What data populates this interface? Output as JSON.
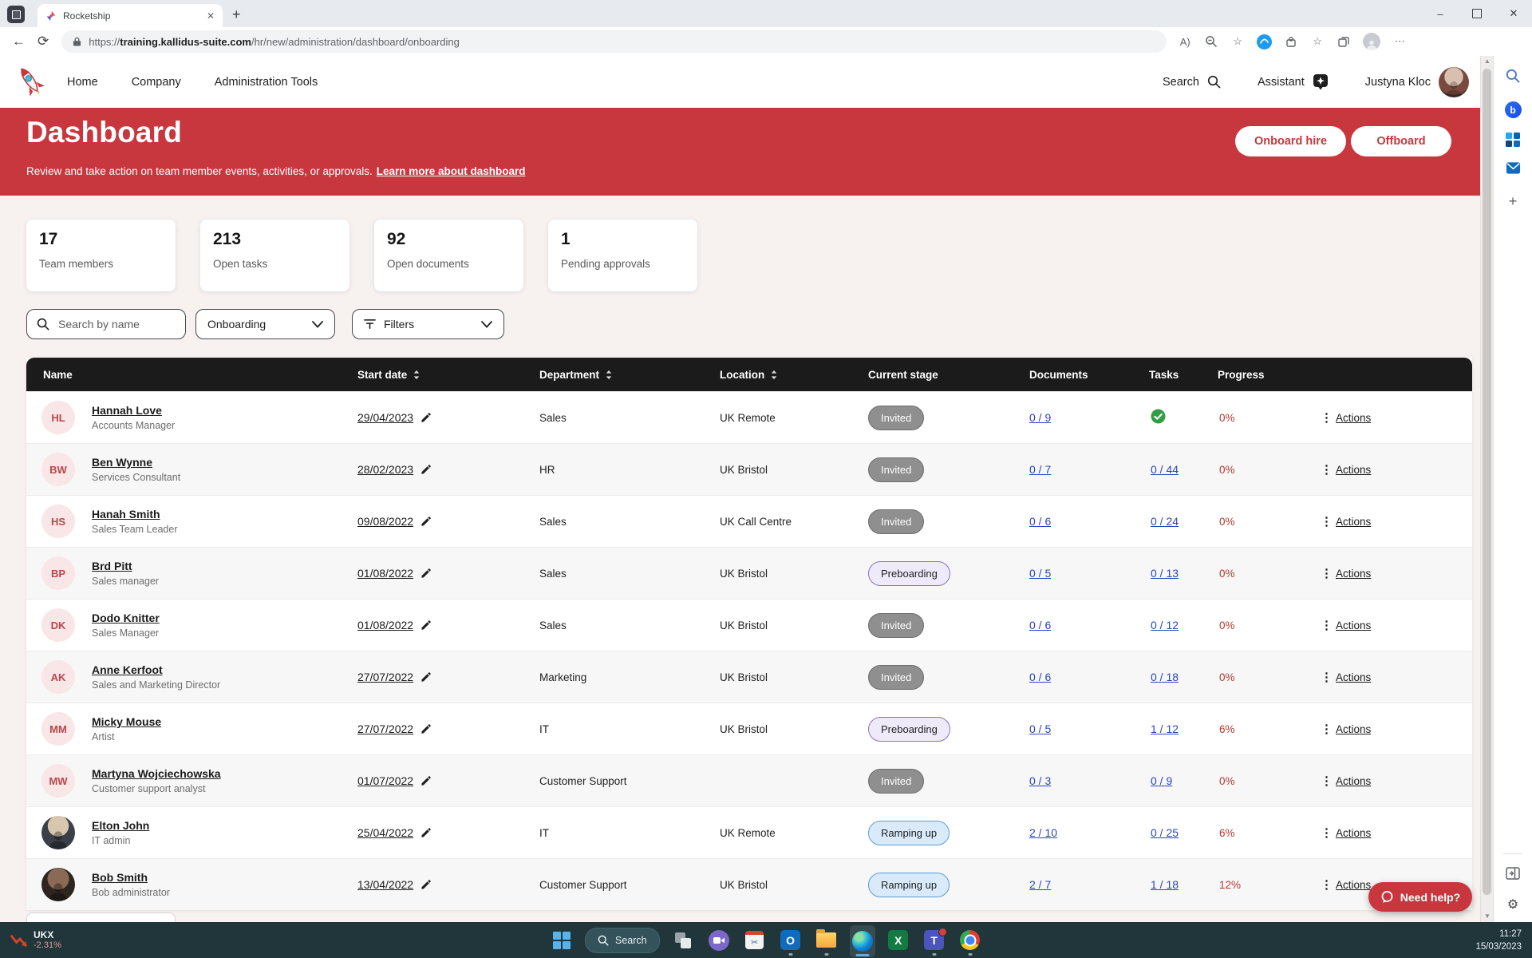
{
  "browser": {
    "tab_title": "Rocketship",
    "url_scheme": "https://",
    "url_host": "training.kallidus-suite.com",
    "url_path": "/hr/new/administration/dashboard/onboarding"
  },
  "icons": {
    "kebab": "⋮",
    "close": "✕",
    "minimize": "–",
    "back": "←",
    "refresh": "⟳",
    "new_tab": "+",
    "read_aloud": "A)",
    "star": "☆",
    "more": "⋯",
    "scroll_up": "▲",
    "scroll_down": "▼",
    "gear": "⚙",
    "scissors": "✂",
    "plus": "+",
    "bing_b": "b",
    "outlook_o": "O",
    "excel_x": "X",
    "teams_t": "T"
  },
  "nav": {
    "links": [
      "Home",
      "Company",
      "Administration Tools"
    ],
    "search_label": "Search",
    "assistant_label": "Assistant",
    "user_name": "Justyna Kloc"
  },
  "header": {
    "title": "Dashboard",
    "subtitle": "Review and take action on team member events, activities, or approvals.",
    "link_label": "Learn more about dashboard",
    "onboard_label": "Onboard hire",
    "offboard_label": "Offboard",
    "accent_color": "#c8373e"
  },
  "stats": [
    {
      "value": "17",
      "label": "Team members"
    },
    {
      "value": "213",
      "label": "Open tasks"
    },
    {
      "value": "92",
      "label": "Open documents"
    },
    {
      "value": "1",
      "label": "Pending approvals"
    }
  ],
  "filters": {
    "search_placeholder": "Search by name",
    "stage_selected": "Onboarding",
    "filters_label": "Filters"
  },
  "table": {
    "columns": [
      "Name",
      "Start date",
      "Department",
      "Location",
      "Current stage",
      "Documents",
      "Tasks",
      "Progress"
    ],
    "actions_label": "Actions",
    "stage_styles": {
      "Invited": {
        "bg": "#8f8f8f",
        "border": "#6d6d6d",
        "text": "#ffffff"
      },
      "Preboarding": {
        "bg": "#efeafa",
        "border": "#8a70ce",
        "text": "#1f1f1f"
      },
      "Ramping up": {
        "bg": "#d9ebfb",
        "border": "#5b9bd5",
        "text": "#1f1f1f"
      }
    },
    "rows": [
      {
        "initials": "HL",
        "name": "Hannah Love",
        "job_title": "Accounts Manager",
        "avatar": "initials",
        "start_date": "29/04/2023",
        "department": "Sales",
        "location": "UK Remote",
        "stage": "Invited",
        "documents": "0 / 9",
        "tasks": "",
        "tasks_complete": true,
        "progress": "0%"
      },
      {
        "initials": "BW",
        "name": "Ben Wynne",
        "job_title": "Services Consultant",
        "avatar": "initials",
        "start_date": "28/02/2023",
        "department": "HR",
        "location": "UK Bristol",
        "stage": "Invited",
        "documents": "0 / 7",
        "tasks": "0 / 44",
        "tasks_complete": false,
        "progress": "0%"
      },
      {
        "initials": "HS",
        "name": "Hanah Smith",
        "job_title": "Sales Team Leader",
        "avatar": "initials",
        "start_date": "09/08/2022",
        "department": "Sales",
        "location": "UK Call Centre",
        "stage": "Invited",
        "documents": "0 / 6",
        "tasks": "0 / 24",
        "tasks_complete": false,
        "progress": "0%"
      },
      {
        "initials": "BP",
        "name": "Brd Pitt",
        "job_title": "Sales manager",
        "avatar": "initials",
        "start_date": "01/08/2022",
        "department": "Sales",
        "location": "UK Bristol",
        "stage": "Preboarding",
        "documents": "0 / 5",
        "tasks": "0 / 13",
        "tasks_complete": false,
        "progress": "0%"
      },
      {
        "initials": "DK",
        "name": "Dodo Knitter",
        "job_title": "Sales Manager",
        "avatar": "initials",
        "start_date": "01/08/2022",
        "department": "Sales",
        "location": "UK Bristol",
        "stage": "Invited",
        "documents": "0 / 6",
        "tasks": "0 / 12",
        "tasks_complete": false,
        "progress": "0%"
      },
      {
        "initials": "AK",
        "name": "Anne Kerfoot",
        "job_title": "Sales and Marketing Director",
        "avatar": "initials",
        "start_date": "27/07/2022",
        "department": "Marketing",
        "location": "UK Bristol",
        "stage": "Invited",
        "documents": "0 / 6",
        "tasks": "0 / 18",
        "tasks_complete": false,
        "progress": "0%"
      },
      {
        "initials": "MM",
        "name": "Micky Mouse",
        "job_title": "Artist",
        "avatar": "initials",
        "start_date": "27/07/2022",
        "department": "IT",
        "location": "UK Bristol",
        "stage": "Preboarding",
        "documents": "0 / 5",
        "tasks": "1 / 12",
        "tasks_complete": false,
        "progress": "6%"
      },
      {
        "initials": "MW",
        "name": "Martyna Wojciechowska",
        "job_title": "Customer support analyst",
        "avatar": "initials",
        "start_date": "01/07/2022",
        "department": "Customer Support",
        "location": "",
        "stage": "Invited",
        "documents": "0 / 3",
        "tasks": "0 / 9",
        "tasks_complete": false,
        "progress": "0%"
      },
      {
        "initials": "",
        "name": "Elton John",
        "job_title": "IT admin",
        "avatar": "photo-light",
        "start_date": "25/04/2022",
        "department": "IT",
        "location": "UK Remote",
        "stage": "Ramping up",
        "documents": "2 / 10",
        "tasks": "0 / 25",
        "tasks_complete": false,
        "progress": "6%"
      },
      {
        "initials": "",
        "name": "Bob Smith",
        "job_title": "Bob administrator",
        "avatar": "photo-dark",
        "start_date": "13/04/2022",
        "department": "Customer Support",
        "location": "UK Bristol",
        "stage": "Ramping up",
        "documents": "2 / 7",
        "tasks": "1 / 18",
        "tasks_complete": false,
        "progress": "12%"
      }
    ]
  },
  "help_button": {
    "label": "Need help?"
  },
  "taskbar": {
    "widget": {
      "symbol": "UKX",
      "change": "-2.31%"
    },
    "search_label": "Search",
    "clock": {
      "time": "11:27",
      "date": "15/03/2023"
    }
  }
}
